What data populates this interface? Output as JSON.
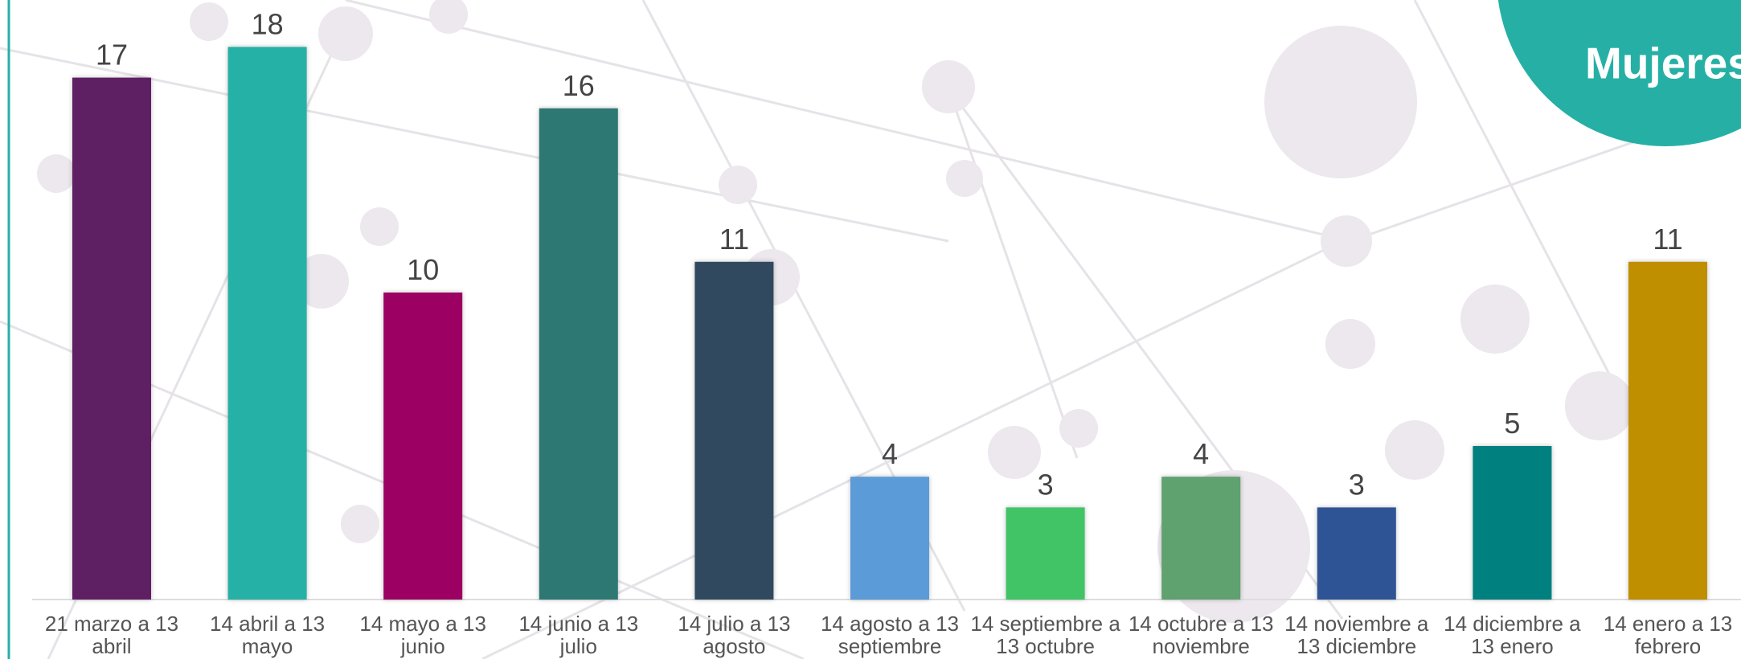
{
  "chart_data": {
    "type": "bar",
    "badge": "Mujeres",
    "categories": [
      "21 marzo a 13 abril",
      "14 abril a 13 mayo",
      "14 mayo a 13 junio",
      "14 junio a 13 julio",
      "14 julio a 13 agosto",
      "14 agosto a 13 septiembre",
      "14 septiembre a 13 octubre",
      "14 octubre a 13 noviembre",
      "14 noviembre a 13 diciembre",
      "14 diciembre a 13 enero",
      "14 enero  a 13 febrero"
    ],
    "values": [
      17,
      18,
      10,
      16,
      11,
      4,
      3,
      4,
      3,
      5,
      11
    ],
    "colors": [
      "#5e1f63",
      "#25b1a6",
      "#9b0062",
      "#2e7873",
      "#31495f",
      "#5b9bd8",
      "#40c466",
      "#5fa16f",
      "#2e5495",
      "#00807f",
      "#bf8f00"
    ]
  }
}
